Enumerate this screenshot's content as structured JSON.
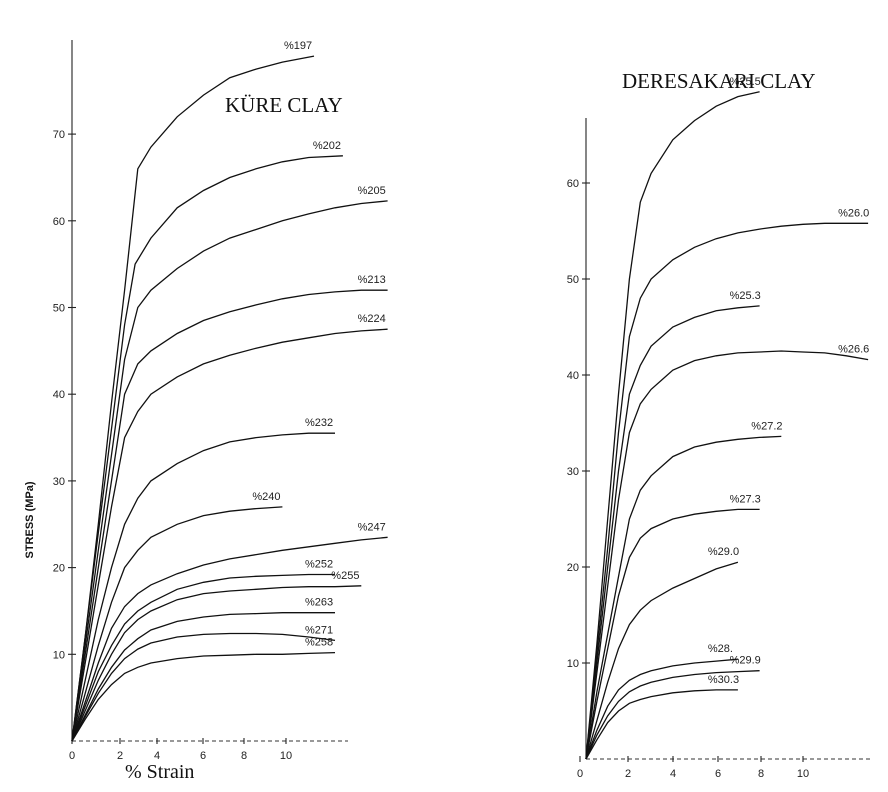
{
  "chart_data": [
    {
      "type": "line",
      "title": "KÜRE CLAY",
      "ylabel": "STRESS (MPa)",
      "xlabel": "% Strain",
      "y_ticks": [
        "10",
        "20",
        "30",
        "40",
        "50",
        "60",
        "70"
      ],
      "x_ticks": [
        "0",
        "2",
        "4",
        "6",
        "8",
        "10"
      ],
      "xlim": [
        0,
        13
      ],
      "ylim": [
        0,
        79
      ],
      "grid": false,
      "series": [
        {
          "name": "%197",
          "x": [
            0,
            0.5,
            1,
            1.5,
            2,
            2.5,
            3,
            4,
            5,
            6,
            7,
            8,
            9.2
          ],
          "y": [
            0,
            12,
            25,
            39,
            52,
            66,
            68.5,
            72,
            74.5,
            76.5,
            77.5,
            78.3,
            79
          ]
        },
        {
          "name": "%202",
          "x": [
            0,
            0.5,
            1,
            1.5,
            2,
            2.4,
            3,
            4,
            5,
            6,
            7,
            8,
            9,
            10.3
          ],
          "y": [
            0,
            12,
            24,
            36,
            48,
            55,
            58,
            61.5,
            63.5,
            65,
            66,
            66.8,
            67.3,
            67.5
          ]
        },
        {
          "name": "%205",
          "x": [
            0,
            0.5,
            1,
            1.5,
            2,
            2.5,
            3,
            4,
            5,
            6,
            7,
            8,
            9,
            10,
            11,
            12
          ],
          "y": [
            0,
            11,
            22,
            33,
            44,
            50,
            52,
            54.5,
            56.5,
            58,
            59,
            60,
            60.8,
            61.5,
            62,
            62.3
          ]
        },
        {
          "name": "%213",
          "x": [
            0,
            0.5,
            1,
            1.5,
            2,
            2.5,
            3,
            4,
            5,
            6,
            7,
            8,
            9,
            10,
            11,
            12
          ],
          "y": [
            0,
            10,
            20,
            30,
            40,
            43.5,
            45,
            47,
            48.5,
            49.5,
            50.3,
            51,
            51.5,
            51.8,
            52,
            52
          ]
        },
        {
          "name": "%224",
          "x": [
            0,
            0.5,
            1,
            1.5,
            2,
            2.5,
            3,
            4,
            5,
            6,
            7,
            8,
            9,
            10,
            11,
            12
          ],
          "y": [
            0,
            9,
            18,
            27,
            35,
            38,
            40,
            42,
            43.5,
            44.5,
            45.3,
            46,
            46.5,
            47,
            47.3,
            47.5
          ]
        },
        {
          "name": "%232",
          "x": [
            0,
            0.5,
            1,
            1.5,
            2,
            2.5,
            3,
            4,
            5,
            6,
            7,
            8,
            9,
            10
          ],
          "y": [
            0,
            7,
            14,
            20,
            25,
            28,
            30,
            32,
            33.5,
            34.5,
            35,
            35.3,
            35.5,
            35.5
          ]
        },
        {
          "name": "%240",
          "x": [
            0,
            0.5,
            1,
            1.5,
            2,
            2.5,
            3,
            4,
            5,
            6,
            7,
            8
          ],
          "y": [
            0,
            5.5,
            11,
            16,
            20,
            22,
            23.5,
            25,
            26,
            26.5,
            26.8,
            27
          ]
        },
        {
          "name": "%247",
          "x": [
            0,
            0.5,
            1,
            1.5,
            2,
            2.5,
            3,
            4,
            5,
            6,
            7,
            8,
            9,
            10,
            11,
            12
          ],
          "y": [
            0,
            4.5,
            9,
            13,
            15.5,
            17,
            18,
            19.3,
            20.3,
            21,
            21.5,
            22,
            22.4,
            22.8,
            23.2,
            23.5
          ]
        },
        {
          "name": "%252",
          "x": [
            0,
            0.5,
            1,
            1.5,
            2,
            2.5,
            3,
            4,
            5,
            6,
            7,
            8,
            9,
            10
          ],
          "y": [
            0,
            4,
            8,
            11,
            13.5,
            15,
            16,
            17.5,
            18.3,
            18.8,
            19,
            19.1,
            19.2,
            19.2
          ]
        },
        {
          "name": "%255",
          "x": [
            0,
            0.5,
            1,
            1.5,
            2,
            2.5,
            3,
            4,
            5,
            6,
            7,
            8,
            9,
            10,
            11
          ],
          "y": [
            0,
            3.5,
            7,
            10,
            12.5,
            14,
            15,
            16.3,
            17,
            17.3,
            17.5,
            17.7,
            17.8,
            17.8,
            17.9
          ]
        },
        {
          "name": "%263",
          "x": [
            0,
            0.5,
            1,
            1.5,
            2,
            2.5,
            3,
            4,
            5,
            6,
            7,
            8,
            9,
            10
          ],
          "y": [
            0,
            3,
            6,
            8.5,
            10.5,
            11.8,
            12.8,
            13.8,
            14.3,
            14.6,
            14.7,
            14.8,
            14.8,
            14.8
          ]
        },
        {
          "name": "%271",
          "x": [
            0,
            0.5,
            1,
            1.5,
            2,
            2.5,
            3,
            4,
            5,
            6,
            7,
            8,
            9,
            10
          ],
          "y": [
            0,
            2.8,
            5.5,
            7.8,
            9.5,
            10.6,
            11.3,
            12,
            12.3,
            12.4,
            12.4,
            12.3,
            12,
            11.6
          ]
        },
        {
          "name": "%258",
          "x": [
            0,
            0.5,
            1,
            1.5,
            2,
            2.5,
            3,
            4,
            5,
            6,
            7,
            8,
            9,
            10
          ],
          "y": [
            0,
            2.5,
            4.8,
            6.5,
            7.8,
            8.5,
            9,
            9.5,
            9.8,
            9.9,
            10,
            10,
            10.1,
            10.2
          ]
        }
      ]
    },
    {
      "type": "line",
      "title": "DERESAKARI CLAY",
      "y_ticks": [
        "10",
        "20",
        "30",
        "40",
        "50",
        "60"
      ],
      "x_ticks": [
        "0",
        "2",
        "4",
        "6",
        "8",
        "10"
      ],
      "xlim": [
        0,
        13
      ],
      "ylim": [
        0,
        71
      ],
      "grid": false,
      "series": [
        {
          "name": "%25.5",
          "x": [
            0,
            0.5,
            1,
            1.5,
            2,
            2.5,
            3,
            4,
            5,
            6,
            7,
            8
          ],
          "y": [
            0,
            12,
            25,
            38,
            50,
            58,
            61,
            64.5,
            66.5,
            68,
            69,
            69.5
          ]
        },
        {
          "name": "%26.0",
          "x": [
            0,
            0.5,
            1,
            1.5,
            2,
            2.5,
            3,
            4,
            5,
            6,
            7,
            8,
            9,
            10,
            11,
            12,
            13
          ],
          "y": [
            0,
            11,
            22,
            34,
            44,
            48,
            50,
            52,
            53.3,
            54.2,
            54.8,
            55.2,
            55.5,
            55.7,
            55.8,
            55.8,
            55.8
          ]
        },
        {
          "name": "%25.3",
          "x": [
            0,
            0.5,
            1,
            1.5,
            2,
            2.5,
            3,
            4,
            5,
            6,
            7,
            8
          ],
          "y": [
            0,
            10,
            20,
            30,
            38,
            41,
            43,
            45,
            46,
            46.7,
            47,
            47.2
          ]
        },
        {
          "name": "%26.6",
          "x": [
            0,
            0.5,
            1,
            1.5,
            2,
            2.5,
            3,
            4,
            5,
            6,
            7,
            8,
            9,
            10,
            11,
            12,
            13
          ],
          "y": [
            0,
            9,
            18,
            27,
            34,
            37,
            38.5,
            40.5,
            41.5,
            42,
            42.3,
            42.4,
            42.5,
            42.4,
            42.3,
            42,
            41.6
          ]
        },
        {
          "name": "%27.2",
          "x": [
            0,
            0.5,
            1,
            1.5,
            2,
            2.5,
            3,
            4,
            5,
            6,
            7,
            8,
            9
          ],
          "y": [
            0,
            7,
            13,
            19,
            25,
            28,
            29.5,
            31.5,
            32.5,
            33,
            33.3,
            33.5,
            33.6
          ]
        },
        {
          "name": "%27.3",
          "x": [
            0,
            0.5,
            1,
            1.5,
            2,
            2.5,
            3,
            4,
            5,
            6,
            7,
            8
          ],
          "y": [
            0,
            6,
            11.5,
            17,
            21,
            23,
            24,
            25,
            25.5,
            25.8,
            26,
            26
          ]
        },
        {
          "name": "%29.0",
          "x": [
            0,
            0.5,
            1,
            1.5,
            2,
            2.5,
            3,
            4,
            5,
            6,
            7
          ],
          "y": [
            0,
            4,
            8,
            11.5,
            14,
            15.5,
            16.5,
            17.8,
            18.8,
            19.8,
            20.5
          ]
        },
        {
          "name": "%28.",
          "x": [
            0,
            0.5,
            1,
            1.5,
            2,
            2.5,
            3,
            4,
            5,
            6,
            7
          ],
          "y": [
            0,
            3,
            5.5,
            7.2,
            8.2,
            8.8,
            9.2,
            9.7,
            10,
            10.2,
            10.4
          ]
        },
        {
          "name": "%29.9",
          "x": [
            0,
            0.5,
            1,
            1.5,
            2,
            2.5,
            3,
            4,
            5,
            6,
            7,
            8
          ],
          "y": [
            0,
            2.5,
            4.5,
            6,
            7,
            7.6,
            8,
            8.5,
            8.8,
            9,
            9.1,
            9.2
          ]
        },
        {
          "name": "%30.3",
          "x": [
            0,
            0.5,
            1,
            1.5,
            2,
            2.5,
            3,
            4,
            5,
            6,
            7
          ],
          "y": [
            0,
            2,
            3.8,
            5,
            5.8,
            6.2,
            6.5,
            6.9,
            7.1,
            7.2,
            7.2
          ]
        }
      ]
    }
  ]
}
